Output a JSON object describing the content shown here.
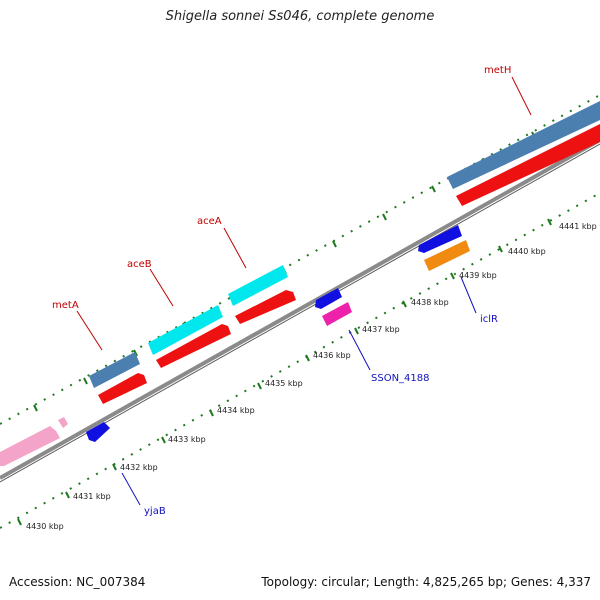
{
  "title": "Shigella sonnei Ss046, complete genome",
  "footer": {
    "accession": "Accession: NC_007384",
    "summary": "Topology: circular; Length: 4,825,265 bp; Genes: 4,337"
  },
  "ticks": [
    "4430 kbp",
    "4431 kbp",
    "4432 kbp",
    "4433 kbp",
    "4434 kbp",
    "4435 kbp",
    "4436 kbp",
    "4437 kbp",
    "4438 kbp",
    "4439 kbp",
    "4440 kbp",
    "4441 kbp"
  ],
  "genes": {
    "metH": "metH",
    "aceA": "aceA",
    "aceB": "aceB",
    "metA": "metA",
    "iclR": "iclR",
    "SSON_4188": "SSON_4188",
    "yjaB": "yjaB"
  },
  "colors": {
    "backbone": "#8a8a8a",
    "tick": "#1f7a1f",
    "gene_steelblue": "#4a7fb0",
    "cds_red": "#ee1111",
    "gene_cyan": "#00e8ee",
    "gene_blue": "#1010e0",
    "gene_magenta": "#ee22aa",
    "gene_orange": "#f08a10",
    "gene_pink": "#f4a4c8"
  }
}
